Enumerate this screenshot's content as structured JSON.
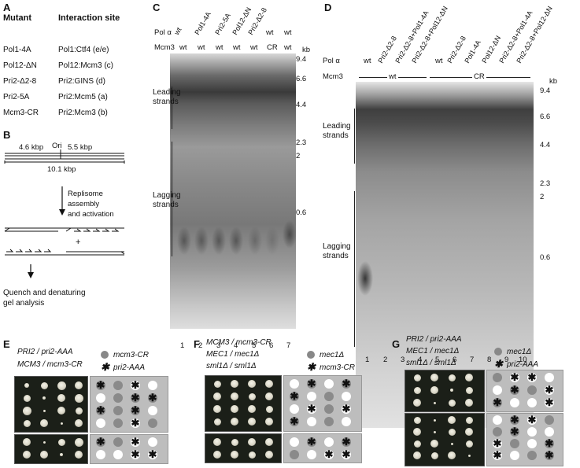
{
  "panels": [
    "A",
    "B",
    "C",
    "D",
    "E",
    "F",
    "G"
  ],
  "panelA": {
    "header_mutant": "Mutant",
    "header_site": "Interaction site",
    "rows": [
      {
        "mutant": "Pol1-4A",
        "site": "Pol1:Ctf4 (e/e)"
      },
      {
        "mutant": "Pol12-ΔN",
        "site": "Pol12:Mcm3 (c)"
      },
      {
        "mutant": "Pri2-Δ2-8",
        "site": "Pri2:GINS (d)"
      },
      {
        "mutant": "Pri2-5A",
        "site": "Pri2:Mcm5 (a)"
      },
      {
        "mutant": "Mcm3-CR",
        "site": "Pri2:Mcm3 (b)"
      }
    ]
  },
  "panelB": {
    "ori": "Ori",
    "left_size": "4.6 kbp",
    "right_size": "5.5 kbp",
    "total": "10.1 kbp",
    "step1": "Replisome\nassembly\nand activation",
    "plus": "+",
    "step2": "Quench and denaturing\ngel analysis"
  },
  "panelC": {
    "row_pol": "Pol α",
    "row_mcm": "Mcm3",
    "lane_labels": [
      "wt",
      "Pol1-4A",
      "Pri2-5A",
      "Pol12-ΔN",
      "Pri2-Δ2-8",
      "wt",
      "wt"
    ],
    "mcm3": [
      "wt",
      "wt",
      "wt",
      "wt",
      "wt",
      "CR",
      "wt"
    ],
    "lane_numbers": [
      "1",
      "2",
      "3",
      "4",
      "5",
      "6",
      "7"
    ],
    "kb_unit": "kb",
    "markers": [
      "9.4",
      "6.6",
      "4.4",
      "2.3",
      "2",
      "0.6"
    ],
    "leading": "Leading\nstrands",
    "lagging": "Lagging\nstrands"
  },
  "panelD": {
    "row_pol": "Pol α",
    "row_mcm": "Mcm3",
    "lane_labels": [
      "wt",
      "Pri2-Δ2-8",
      "Pri2-Δ2-8+Pol1-4A",
      "Pri2-Δ2-8+Pol12-ΔN",
      "wt",
      "Pri2-Δ2-8",
      "Pol1-4A",
      "Pol12-ΔN",
      "Pri2-Δ2-8+Pol1-4A",
      "Pri2-Δ2-8+Pol12-ΔN"
    ],
    "group_wt": "wt",
    "group_cr": "CR",
    "lane_numbers": [
      "1",
      "2",
      "3",
      "4",
      "5",
      "6",
      "7",
      "8",
      "9",
      "10"
    ],
    "kb_unit": "kb",
    "markers": [
      "9.4",
      "6.6",
      "4.4",
      "2.3",
      "2",
      "0.6"
    ],
    "leading": "Leading\nstrands",
    "lagging": "Lagging\nstrands"
  },
  "panelE": {
    "genotype": [
      "PRI2 / pri2-AAA",
      "MCM3 / mcm3-CR"
    ],
    "legend": [
      {
        "marker": "dot",
        "label": "mcm3-CR"
      },
      {
        "marker": "star",
        "label": "pri2-AAA"
      }
    ]
  },
  "panelF": {
    "genotype": [
      "MCM3 / mcm3-CR",
      "MEC1 / mec1Δ",
      "sml1Δ / sml1Δ"
    ],
    "legend": [
      {
        "marker": "dot",
        "label": "mec1Δ"
      },
      {
        "marker": "star",
        "label": "mcm3-CR"
      }
    ]
  },
  "panelG": {
    "genotype": [
      "PRI2 / pri2-AAA",
      "MEC1 / mec1Δ",
      "sml1Δ / sml1Δ"
    ],
    "legend": [
      {
        "marker": "dot",
        "label": "mec1Δ"
      },
      {
        "marker": "star",
        "label": "pri2-AAA"
      }
    ]
  },
  "colors": {
    "gray_dot": "#8a8a8a",
    "grid_bg": "#bdbdbd",
    "plate": "#1b1f18"
  }
}
